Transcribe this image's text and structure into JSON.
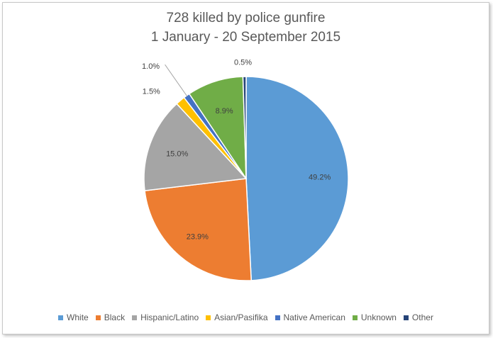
{
  "chart_data": {
    "type": "pie",
    "title": "728 killed by police gunfire",
    "subtitle": "1 January - 20 September 2015",
    "slices": [
      {
        "label": "White",
        "value": 49.2,
        "display": "49.2%",
        "color": "#5b9bd5"
      },
      {
        "label": "Black",
        "value": 23.9,
        "display": "23.9%",
        "color": "#ed7d31"
      },
      {
        "label": "Hispanic/Latino",
        "value": 15.0,
        "display": "15.0%",
        "color": "#a5a5a5"
      },
      {
        "label": "Asian/Pasifika",
        "value": 1.5,
        "display": "1.5%",
        "color": "#ffc000"
      },
      {
        "label": "Native American",
        "value": 1.0,
        "display": "1.0%",
        "color": "#4472c4"
      },
      {
        "label": "Unknown",
        "value": 8.9,
        "display": "8.9%",
        "color": "#70ad47"
      },
      {
        "label": "Other",
        "value": 0.5,
        "display": "0.5%",
        "color": "#264478"
      }
    ],
    "legend_position": "bottom"
  }
}
